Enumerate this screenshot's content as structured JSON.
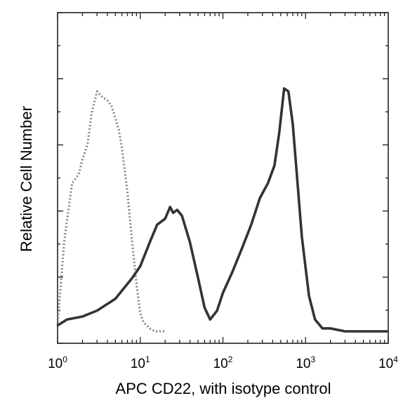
{
  "chart_data": {
    "type": "line",
    "title": "",
    "xlabel": "APC CD22, with isotype control",
    "ylabel": "Relative Cell Number",
    "xscale": "log",
    "xlim": [
      1,
      10000
    ],
    "ylim": [
      0,
      1
    ],
    "xticks": [
      {
        "base": "10",
        "exp": "0"
      },
      {
        "base": "10",
        "exp": "1"
      },
      {
        "base": "10",
        "exp": "2"
      },
      {
        "base": "10",
        "exp": "3"
      },
      {
        "base": "10",
        "exp": "4"
      }
    ],
    "grid": false,
    "legend": "none",
    "series": [
      {
        "style": "dotted",
        "color": "#888888",
        "x": [
          1.0,
          1.2,
          1.5,
          1.8,
          2.0,
          2.3,
          2.6,
          3.0,
          3.5,
          4.0,
          4.5,
          5.0,
          5.5,
          6.0,
          7.0,
          8.0,
          9.0,
          10.0,
          11.0,
          12.0,
          13.0,
          15.0,
          20.0
        ],
        "y": [
          0.02,
          0.3,
          0.5,
          0.53,
          0.58,
          0.63,
          0.74,
          0.81,
          0.79,
          0.78,
          0.76,
          0.72,
          0.68,
          0.62,
          0.47,
          0.3,
          0.16,
          0.06,
          0.03,
          0.02,
          0.01,
          0.0,
          0.0
        ]
      },
      {
        "style": "solid",
        "color": "#333333",
        "x": [
          1.0,
          1.3,
          2.0,
          3.0,
          5.0,
          8.0,
          10.0,
          13.0,
          16.0,
          20.0,
          23.0,
          25.0,
          28.0,
          32.0,
          40.0,
          50.0,
          60.0,
          70.0,
          85.0,
          100.0,
          130.0,
          170.0,
          220.0,
          280.0,
          350.0,
          420.0,
          480.0,
          550.0,
          620.0,
          700.0,
          800.0,
          900.0,
          1100.0,
          1300.0,
          1600.0,
          2000.0,
          3000.0,
          5000.0,
          10000.0
        ],
        "y": [
          0.02,
          0.04,
          0.05,
          0.07,
          0.11,
          0.18,
          0.22,
          0.3,
          0.36,
          0.38,
          0.42,
          0.4,
          0.41,
          0.39,
          0.3,
          0.18,
          0.08,
          0.04,
          0.07,
          0.13,
          0.2,
          0.28,
          0.36,
          0.45,
          0.5,
          0.56,
          0.67,
          0.82,
          0.81,
          0.7,
          0.5,
          0.32,
          0.12,
          0.04,
          0.01,
          0.01,
          0.0,
          0.0,
          0.0
        ]
      }
    ]
  }
}
